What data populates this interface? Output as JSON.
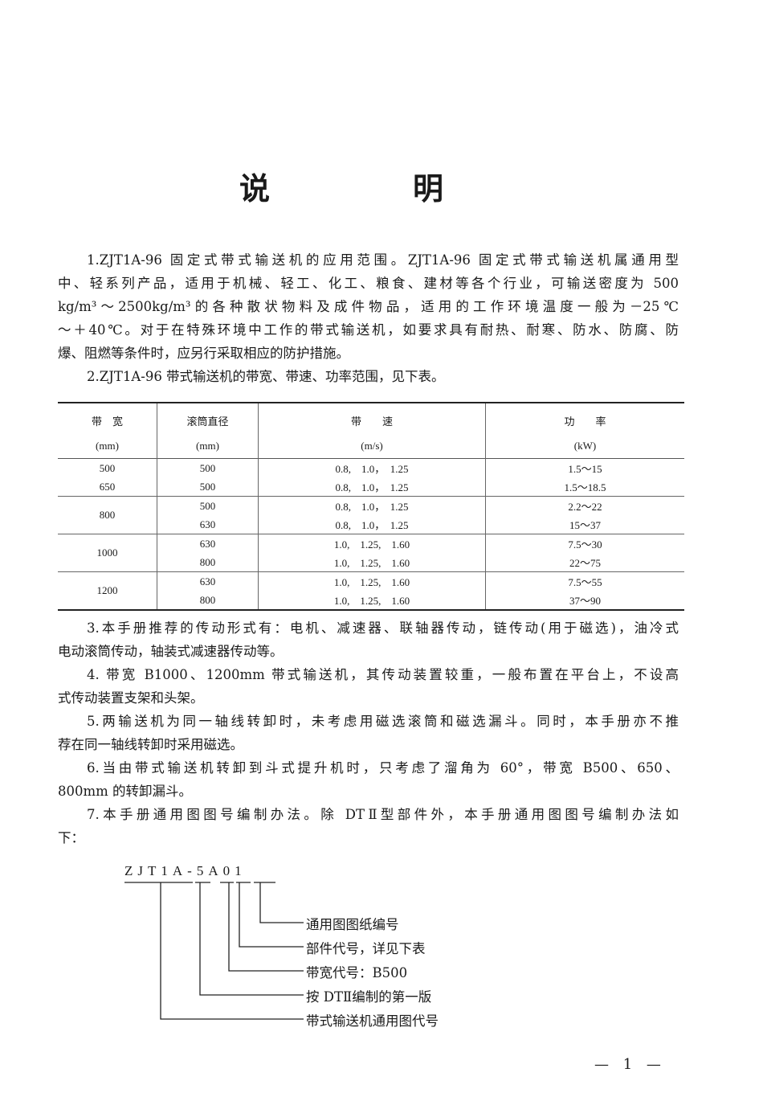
{
  "title": "说　明",
  "paragraphs_top": [
    [
      "1.ZJT1A-96 固定式带式输送机的应用范围。ZJT1A-96 固定式带式输送机属通用型",
      "中、轻系列产品，适用于机械、轻工、化工、粮食、建材等各个行业，可输送密度为 500",
      "kg/m³～2500kg/m³的各种散状物料及成件物品，适用的工作环境温度一般为－25℃",
      "～＋40℃。对于在特殊环境中工作的带式输送机，如要求具有耐热、耐寒、防水、防腐、防",
      "爆、阻燃等条件时，应另行采取相应的防护措施。"
    ],
    [
      "2.ZJT1A-96 带式输送机的带宽、带速、功率范围，见下表。"
    ]
  ],
  "table": {
    "headers": [
      [
        "带　宽",
        "(mm)"
      ],
      [
        "滚筒直径",
        "(mm)"
      ],
      [
        "带　　速",
        "(m/s)"
      ],
      [
        "功　　率",
        "(kW)"
      ]
    ],
    "groups": [
      {
        "rows": [
          {
            "width": "500",
            "drum": "500",
            "speed": "0.8,　1.0，　1.25",
            "power": "1.5～15"
          },
          {
            "width": "650",
            "drum": "500",
            "speed": "0.8,　1.0，　1.25",
            "power": "1.5～18.5"
          }
        ]
      },
      {
        "width": "800",
        "rows": [
          {
            "drum": "500",
            "speed": "0.8,　1.0，　1.25",
            "power": "2.2～22"
          },
          {
            "drum": "630",
            "speed": "0.8,　1.0，　1.25",
            "power": "15～37"
          }
        ]
      },
      {
        "width": "1000",
        "rows": [
          {
            "drum": "630",
            "speed": "1.0,　1.25,　1.60",
            "power": "7.5～30"
          },
          {
            "drum": "800",
            "speed": "1.0,　1.25,　1.60",
            "power": "22～75"
          }
        ]
      },
      {
        "width": "1200",
        "rows": [
          {
            "drum": "630",
            "speed": "1.0,　1.25,　1.60",
            "power": "7.5～55"
          },
          {
            "drum": "800",
            "speed": "1.0,　1.25,　1.60",
            "power": "37～90"
          }
        ]
      }
    ]
  },
  "paragraphs_bottom": [
    [
      "3.本手册推荐的传动形式有：电机、减速器、联轴器传动，链传动(用于磁选)，油冷式",
      "电动滚筒传动，轴装式减速器传动等。"
    ],
    [
      "4. 带宽 B1000、1200mm 带式输送机，其传动装置较重，一般布置在平台上，不设高",
      "式传动装置支架和头架。"
    ],
    [
      "5.两输送机为同一轴线转卸时，未考虑用磁选滚筒和磁选漏斗。同时，本手册亦不推",
      "荐在同一轴线转卸时采用磁选。"
    ],
    [
      "6.当由带式输送机转卸到斗式提升机时，只考虑了溜角为 60°，带宽 B500、650、",
      "800mm 的转卸漏斗。"
    ],
    [
      "7.本手册通用图图号编制办法。除 DTⅡ型部件外，本手册通用图图号编制办法如",
      "下："
    ]
  ],
  "diagram": {
    "code": "ZJT1A-5A01",
    "labels": [
      "通用图图纸编号",
      "部件代号，详见下表",
      "带宽代号：B500",
      "按 DTⅡ编制的第一版",
      "带式输送机通用图代号"
    ]
  },
  "page_number": "— 1 —"
}
